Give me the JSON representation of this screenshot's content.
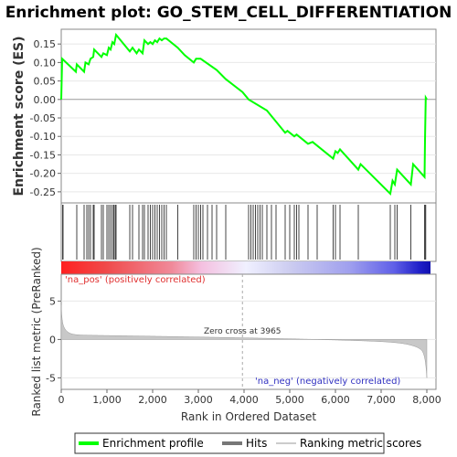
{
  "chart_data": {
    "type": "line",
    "title": "Enrichment plot: GO_STEM_CELL_DIFFERENTIATION",
    "es_panel": {
      "ylabel": "Enrichment score (ES)",
      "ylim": [
        -0.28,
        0.19
      ],
      "yticks": [
        "0.15",
        "0.10",
        "0.05",
        "0.00",
        "-0.05",
        "-0.10",
        "-0.15",
        "-0.20",
        "-0.25"
      ],
      "ytick_values": [
        0.15,
        0.1,
        0.05,
        0.0,
        -0.05,
        -0.1,
        -0.15,
        -0.2,
        -0.25
      ],
      "color": "#00ff00",
      "points": [
        [
          0,
          0.0
        ],
        [
          20,
          0.11
        ],
        [
          320,
          0.075
        ],
        [
          340,
          0.095
        ],
        [
          500,
          0.075
        ],
        [
          530,
          0.1
        ],
        [
          600,
          0.095
        ],
        [
          640,
          0.11
        ],
        [
          700,
          0.115
        ],
        [
          720,
          0.135
        ],
        [
          880,
          0.115
        ],
        [
          920,
          0.125
        ],
        [
          1000,
          0.12
        ],
        [
          1040,
          0.14
        ],
        [
          1080,
          0.135
        ],
        [
          1120,
          0.155
        ],
        [
          1160,
          0.15
        ],
        [
          1200,
          0.175
        ],
        [
          1500,
          0.13
        ],
        [
          1560,
          0.14
        ],
        [
          1650,
          0.125
        ],
        [
          1700,
          0.135
        ],
        [
          1780,
          0.125
        ],
        [
          1820,
          0.16
        ],
        [
          1900,
          0.15
        ],
        [
          1950,
          0.155
        ],
        [
          2000,
          0.15
        ],
        [
          2050,
          0.16
        ],
        [
          2100,
          0.155
        ],
        [
          2150,
          0.165
        ],
        [
          2200,
          0.16
        ],
        [
          2250,
          0.165
        ],
        [
          2300,
          0.165
        ],
        [
          2550,
          0.14
        ],
        [
          2700,
          0.12
        ],
        [
          2900,
          0.1
        ],
        [
          2950,
          0.11
        ],
        [
          3050,
          0.11
        ],
        [
          3400,
          0.08
        ],
        [
          3600,
          0.055
        ],
        [
          3965,
          0.02
        ],
        [
          4100,
          0.0
        ],
        [
          4500,
          -0.03
        ],
        [
          4900,
          -0.09
        ],
        [
          4950,
          -0.085
        ],
        [
          5100,
          -0.1
        ],
        [
          5150,
          -0.095
        ],
        [
          5400,
          -0.12
        ],
        [
          5500,
          -0.115
        ],
        [
          5950,
          -0.16
        ],
        [
          6000,
          -0.14
        ],
        [
          6050,
          -0.145
        ],
        [
          6100,
          -0.135
        ],
        [
          6500,
          -0.19
        ],
        [
          6550,
          -0.175
        ],
        [
          7200,
          -0.255
        ],
        [
          7250,
          -0.22
        ],
        [
          7300,
          -0.23
        ],
        [
          7350,
          -0.19
        ],
        [
          7650,
          -0.23
        ],
        [
          7700,
          -0.175
        ],
        [
          7950,
          -0.21
        ],
        [
          7960,
          -0.11
        ],
        [
          7975,
          0.005
        ],
        [
          8000,
          0.0
        ]
      ]
    },
    "hits_panel": {
      "label": "Hits",
      "hits": [
        30,
        40,
        340,
        500,
        560,
        600,
        640,
        700,
        720,
        880,
        920,
        1000,
        1040,
        1080,
        1120,
        1150,
        1180,
        1200,
        1500,
        1560,
        1700,
        1780,
        1820,
        1900,
        1950,
        2000,
        2050,
        2100,
        2150,
        2200,
        2250,
        2300,
        2550,
        2900,
        2950,
        3000,
        3050,
        3100,
        3200,
        3300,
        3400,
        3600,
        4100,
        4150,
        4200,
        4250,
        4300,
        4350,
        4400,
        4500,
        4600,
        4700,
        4900,
        5000,
        5100,
        5150,
        5200,
        5400,
        5600,
        5950,
        6000,
        6100,
        6500,
        7200,
        7300,
        7350,
        7650,
        7950,
        7960,
        7975
      ]
    },
    "rank_panel": {
      "ylabel": "Ranked list metric (PreRanked)",
      "xlabel": "Rank in Ordered Dataset",
      "ylim": [
        -6.5,
        8.5
      ],
      "yticks": [
        "5",
        "0",
        "-5"
      ],
      "ytick_values": [
        5,
        0,
        -5
      ],
      "xticks": [
        "0",
        "1,000",
        "2,000",
        "3,000",
        "4,000",
        "5,000",
        "6,000",
        "7,000",
        "8,000"
      ],
      "xtick_values": [
        0,
        1000,
        2000,
        3000,
        4000,
        5000,
        6000,
        7000,
        8000
      ],
      "xlim": [
        0,
        8200
      ],
      "n": 8000,
      "zero_cross": 3965,
      "zero_cross_label": "Zero cross at 3965",
      "pos_label": "'na_pos' (positively correlated)",
      "neg_label": "'na_neg' (negatively correlated)"
    },
    "legend": [
      {
        "label": "Enrichment profile",
        "color": "#00ff00"
      },
      {
        "label": "Hits",
        "color": "#777777"
      },
      {
        "label": "Ranking metric scores",
        "color": "#cccccc"
      }
    ]
  }
}
